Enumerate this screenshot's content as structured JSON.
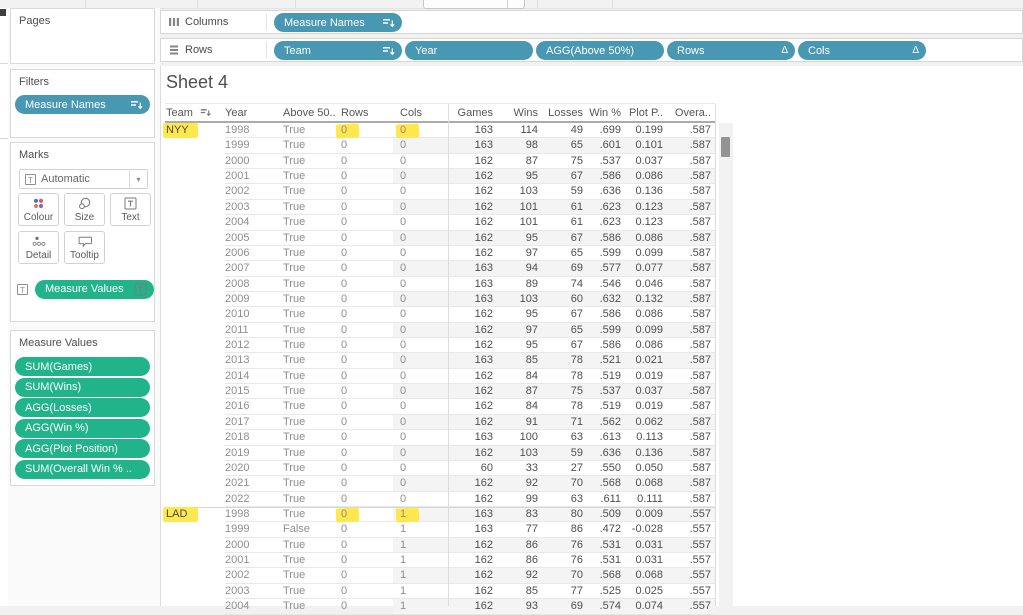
{
  "sidebar": {
    "pages": {
      "title": "Pages"
    },
    "filters": {
      "title": "Filters",
      "pills": [
        {
          "label": "Measure Names",
          "icon": "sort-icon"
        }
      ]
    },
    "marks": {
      "title": "Marks",
      "mark_type_label": "Automatic",
      "buttons": [
        {
          "label": "Colour",
          "icon": "colour-icon"
        },
        {
          "label": "Size",
          "icon": "size-icon"
        },
        {
          "label": "Text",
          "icon": "text-icon"
        },
        {
          "label": "Detail",
          "icon": "detail-icon"
        },
        {
          "label": "Tooltip",
          "icon": "tooltip-icon"
        }
      ],
      "target_pill": {
        "label": "Measure Values",
        "icon": "text-icon"
      }
    },
    "measure_values": {
      "title": "Measure Values",
      "pills": [
        "SUM(Games)",
        "SUM(Wins)",
        "AGG(Losses)",
        "AGG(Win %)",
        "AGG(Plot Position)",
        "SUM(Overall Win % .."
      ]
    }
  },
  "shelves": {
    "columns": {
      "label": "Columns",
      "pills": [
        {
          "label": "Measure Names",
          "icon": "sort-icon"
        }
      ]
    },
    "rows": {
      "label": "Rows",
      "pills": [
        {
          "label": "Team",
          "icon": "sort-icon"
        },
        {
          "label": "Year"
        },
        {
          "label": "AGG(Above 50%)"
        },
        {
          "label": "Rows",
          "icon": "delta-icon"
        },
        {
          "label": "Cols",
          "icon": "delta-icon"
        }
      ]
    }
  },
  "sheet": {
    "title": "Sheet 4",
    "columns": [
      "Team",
      "Year",
      "Above 50..",
      "Rows",
      "Cols",
      "Games",
      "Wins",
      "Losses",
      "Win %",
      "Plot P..",
      "Overa.."
    ],
    "rows": [
      {
        "team": "NYY",
        "year": "1998",
        "above": "True",
        "rows": "0",
        "cols": "0",
        "games": "163",
        "wins": "114",
        "losses": "49",
        "win": ".699",
        "plot": "0.199",
        "overall": ".587",
        "hl": [
          "team",
          "rows",
          "cols"
        ]
      },
      {
        "year": "1999",
        "above": "True",
        "rows": "0",
        "cols": "0",
        "games": "163",
        "wins": "98",
        "losses": "65",
        "win": ".601",
        "plot": "0.101",
        "overall": ".587"
      },
      {
        "year": "2000",
        "above": "True",
        "rows": "0",
        "cols": "0",
        "games": "162",
        "wins": "87",
        "losses": "75",
        "win": ".537",
        "plot": "0.037",
        "overall": ".587"
      },
      {
        "year": "2001",
        "above": "True",
        "rows": "0",
        "cols": "0",
        "games": "162",
        "wins": "95",
        "losses": "67",
        "win": ".586",
        "plot": "0.086",
        "overall": ".587"
      },
      {
        "year": "2002",
        "above": "True",
        "rows": "0",
        "cols": "0",
        "games": "162",
        "wins": "103",
        "losses": "59",
        "win": ".636",
        "plot": "0.136",
        "overall": ".587"
      },
      {
        "year": "2003",
        "above": "True",
        "rows": "0",
        "cols": "0",
        "games": "162",
        "wins": "101",
        "losses": "61",
        "win": ".623",
        "plot": "0.123",
        "overall": ".587"
      },
      {
        "year": "2004",
        "above": "True",
        "rows": "0",
        "cols": "0",
        "games": "162",
        "wins": "101",
        "losses": "61",
        "win": ".623",
        "plot": "0.123",
        "overall": ".587"
      },
      {
        "year": "2005",
        "above": "True",
        "rows": "0",
        "cols": "0",
        "games": "162",
        "wins": "95",
        "losses": "67",
        "win": ".586",
        "plot": "0.086",
        "overall": ".587"
      },
      {
        "year": "2006",
        "above": "True",
        "rows": "0",
        "cols": "0",
        "games": "162",
        "wins": "97",
        "losses": "65",
        "win": ".599",
        "plot": "0.099",
        "overall": ".587"
      },
      {
        "year": "2007",
        "above": "True",
        "rows": "0",
        "cols": "0",
        "games": "163",
        "wins": "94",
        "losses": "69",
        "win": ".577",
        "plot": "0.077",
        "overall": ".587"
      },
      {
        "year": "2008",
        "above": "True",
        "rows": "0",
        "cols": "0",
        "games": "163",
        "wins": "89",
        "losses": "74",
        "win": ".546",
        "plot": "0.046",
        "overall": ".587"
      },
      {
        "year": "2009",
        "above": "True",
        "rows": "0",
        "cols": "0",
        "games": "163",
        "wins": "103",
        "losses": "60",
        "win": ".632",
        "plot": "0.132",
        "overall": ".587"
      },
      {
        "year": "2010",
        "above": "True",
        "rows": "0",
        "cols": "0",
        "games": "162",
        "wins": "95",
        "losses": "67",
        "win": ".586",
        "plot": "0.086",
        "overall": ".587"
      },
      {
        "year": "2011",
        "above": "True",
        "rows": "0",
        "cols": "0",
        "games": "162",
        "wins": "97",
        "losses": "65",
        "win": ".599",
        "plot": "0.099",
        "overall": ".587"
      },
      {
        "year": "2012",
        "above": "True",
        "rows": "0",
        "cols": "0",
        "games": "162",
        "wins": "95",
        "losses": "67",
        "win": ".586",
        "plot": "0.086",
        "overall": ".587"
      },
      {
        "year": "2013",
        "above": "True",
        "rows": "0",
        "cols": "0",
        "games": "163",
        "wins": "85",
        "losses": "78",
        "win": ".521",
        "plot": "0.021",
        "overall": ".587"
      },
      {
        "year": "2014",
        "above": "True",
        "rows": "0",
        "cols": "0",
        "games": "162",
        "wins": "84",
        "losses": "78",
        "win": ".519",
        "plot": "0.019",
        "overall": ".587"
      },
      {
        "year": "2015",
        "above": "True",
        "rows": "0",
        "cols": "0",
        "games": "162",
        "wins": "87",
        "losses": "75",
        "win": ".537",
        "plot": "0.037",
        "overall": ".587"
      },
      {
        "year": "2016",
        "above": "True",
        "rows": "0",
        "cols": "0",
        "games": "162",
        "wins": "84",
        "losses": "78",
        "win": ".519",
        "plot": "0.019",
        "overall": ".587"
      },
      {
        "year": "2017",
        "above": "True",
        "rows": "0",
        "cols": "0",
        "games": "162",
        "wins": "91",
        "losses": "71",
        "win": ".562",
        "plot": "0.062",
        "overall": ".587"
      },
      {
        "year": "2018",
        "above": "True",
        "rows": "0",
        "cols": "0",
        "games": "163",
        "wins": "100",
        "losses": "63",
        "win": ".613",
        "plot": "0.113",
        "overall": ".587"
      },
      {
        "year": "2019",
        "above": "True",
        "rows": "0",
        "cols": "0",
        "games": "162",
        "wins": "103",
        "losses": "59",
        "win": ".636",
        "plot": "0.136",
        "overall": ".587"
      },
      {
        "year": "2020",
        "above": "True",
        "rows": "0",
        "cols": "0",
        "games": "60",
        "wins": "33",
        "losses": "27",
        "win": ".550",
        "plot": "0.050",
        "overall": ".587"
      },
      {
        "year": "2021",
        "above": "True",
        "rows": "0",
        "cols": "0",
        "games": "162",
        "wins": "92",
        "losses": "70",
        "win": ".568",
        "plot": "0.068",
        "overall": ".587"
      },
      {
        "year": "2022",
        "above": "True",
        "rows": "0",
        "cols": "0",
        "games": "162",
        "wins": "99",
        "losses": "63",
        "win": ".611",
        "plot": "0.111",
        "overall": ".587"
      },
      {
        "team": "LAD",
        "year": "1998",
        "above": "True",
        "rows": "0",
        "cols": "1",
        "games": "163",
        "wins": "83",
        "losses": "80",
        "win": ".509",
        "plot": "0.009",
        "overall": ".557",
        "hl": [
          "team",
          "rows",
          "cols"
        ]
      },
      {
        "year": "1999",
        "above": "False",
        "rows": "0",
        "cols": "1",
        "games": "163",
        "wins": "77",
        "losses": "86",
        "win": ".472",
        "plot": "-0.028",
        "overall": ".557"
      },
      {
        "year": "2000",
        "above": "True",
        "rows": "0",
        "cols": "1",
        "games": "162",
        "wins": "86",
        "losses": "76",
        "win": ".531",
        "plot": "0.031",
        "overall": ".557"
      },
      {
        "year": "2001",
        "above": "True",
        "rows": "0",
        "cols": "1",
        "games": "162",
        "wins": "86",
        "losses": "76",
        "win": ".531",
        "plot": "0.031",
        "overall": ".557"
      },
      {
        "year": "2002",
        "above": "True",
        "rows": "0",
        "cols": "1",
        "games": "162",
        "wins": "92",
        "losses": "70",
        "win": ".568",
        "plot": "0.068",
        "overall": ".557"
      },
      {
        "year": "2003",
        "above": "True",
        "rows": "0",
        "cols": "1",
        "games": "162",
        "wins": "85",
        "losses": "77",
        "win": ".525",
        "plot": "0.025",
        "overall": ".557"
      },
      {
        "year": "2004",
        "above": "True",
        "rows": "0",
        "cols": "1",
        "games": "162",
        "wins": "93",
        "losses": "69",
        "win": ".574",
        "plot": "0.074",
        "overall": ".557"
      }
    ]
  },
  "colors": {
    "dimension_pill": "#4897b3",
    "measure_pill": "#21b48b",
    "highlight": "#ffe74e"
  }
}
